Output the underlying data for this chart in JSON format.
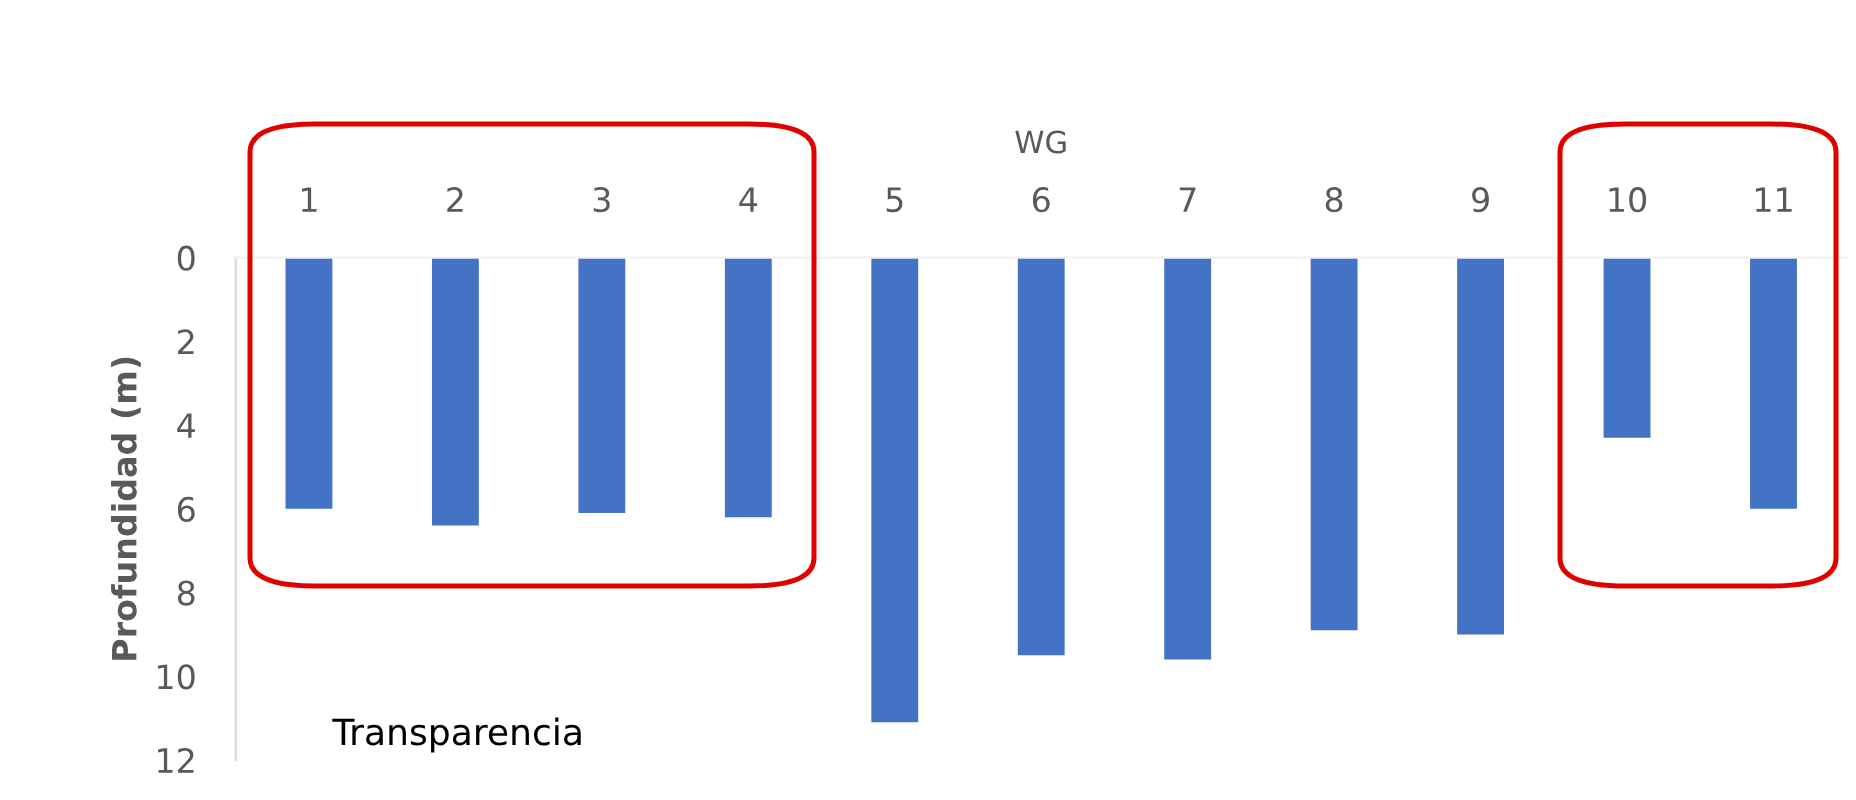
{
  "chart_data": {
    "type": "bar",
    "xlabel": "WG",
    "ylabel": "Profundidad (m)",
    "categories": [
      "1",
      "2",
      "3",
      "4",
      "5",
      "6",
      "7",
      "8",
      "9",
      "10",
      "11"
    ],
    "values": [
      6.0,
      6.4,
      6.1,
      6.2,
      11.1,
      9.5,
      9.6,
      8.9,
      9.0,
      4.3,
      6.0
    ],
    "color": "#4472c4",
    "ylim": [
      12,
      0
    ],
    "yticks": [
      0,
      2,
      4,
      6,
      8,
      10,
      12
    ],
    "grid": false,
    "annotations": [
      "Transparencia"
    ]
  }
}
